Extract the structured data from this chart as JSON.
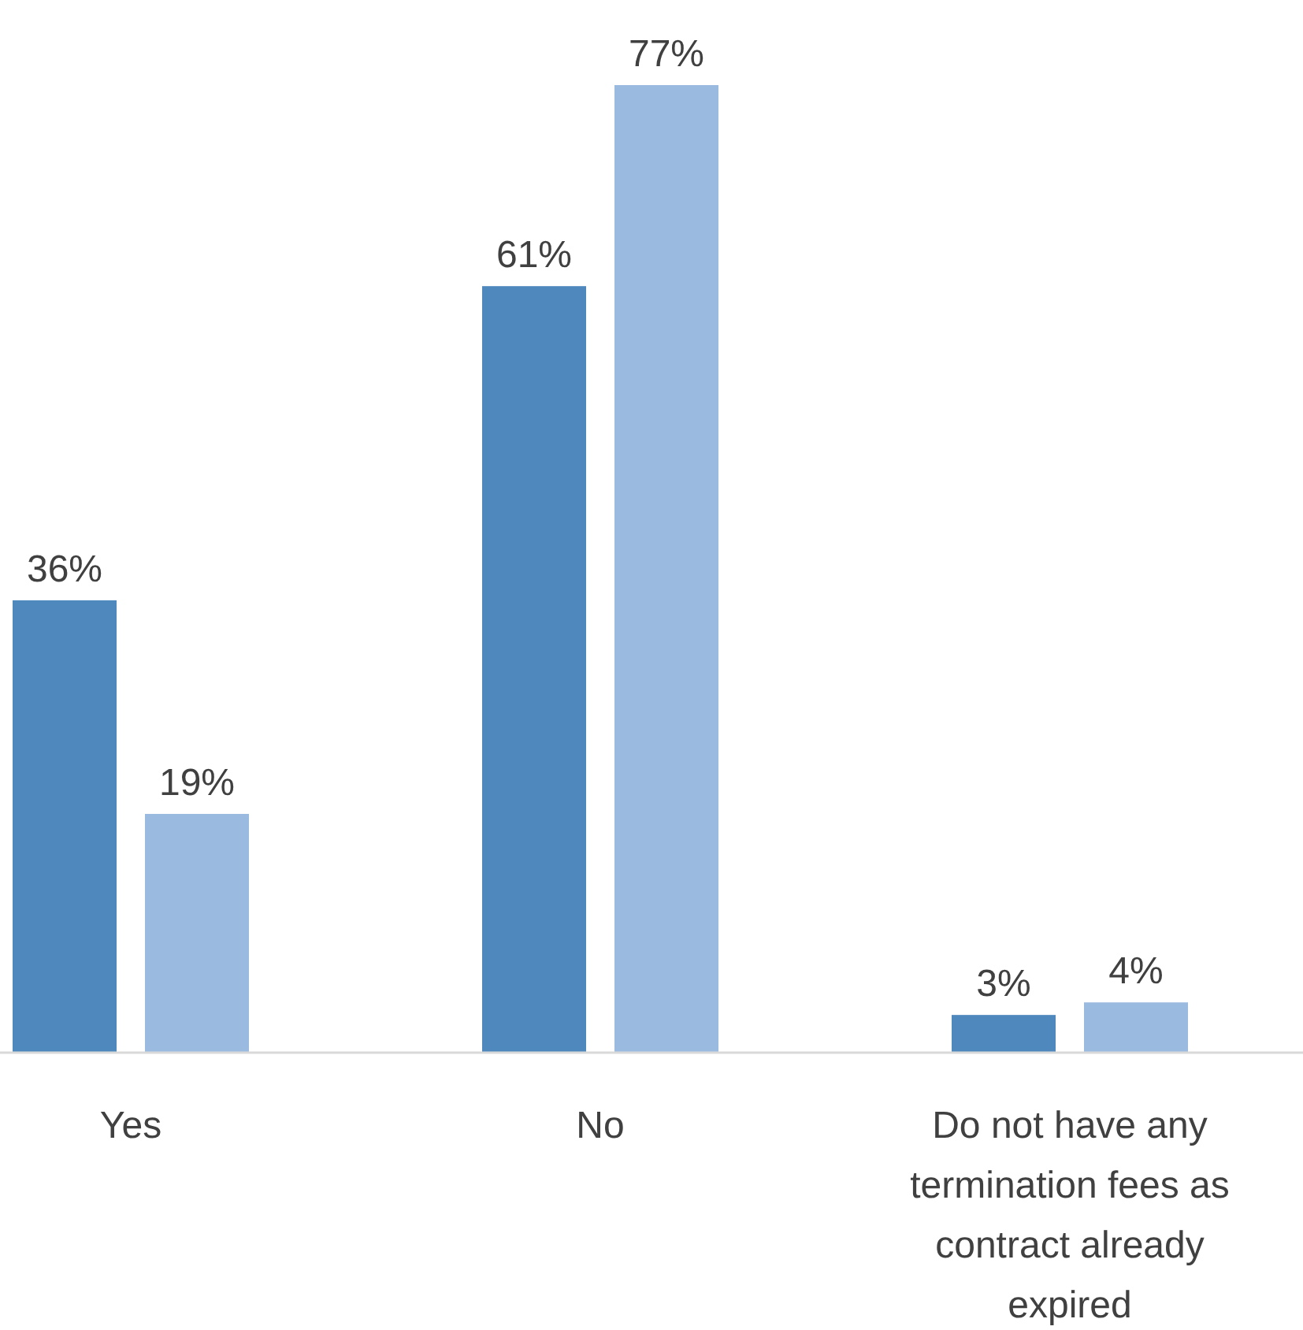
{
  "chart_data": {
    "type": "bar",
    "categories": [
      "Yes",
      "No",
      "Do not have any termination fees as contract already expired"
    ],
    "series": [
      {
        "color": "#4f88bd",
        "values": [
          36,
          61,
          3
        ],
        "value_labels": [
          "36%",
          "61%",
          "3%"
        ]
      },
      {
        "color": "#9bbae0",
        "values": [
          19,
          77,
          4
        ],
        "value_labels": [
          "19%",
          "77%",
          "4%"
        ]
      }
    ],
    "tick_labels": "x"
  }
}
